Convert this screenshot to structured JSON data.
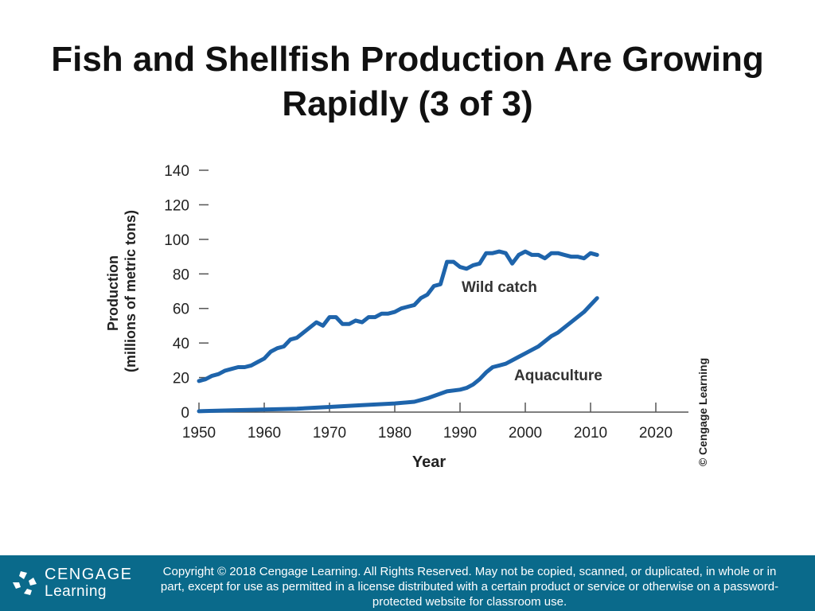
{
  "slide": {
    "title_line1": "Fish and Shellfish Production Are Growing",
    "title_line2": "Rapidly (3 of 3)"
  },
  "chart_data": {
    "type": "line",
    "title": "",
    "xlabel": "Year",
    "ylabel_line1": "Production",
    "ylabel_line2": "(millions of metric tons)",
    "xlim": [
      1950,
      2025
    ],
    "ylim": [
      0,
      140
    ],
    "x_ticks": [
      1950,
      1960,
      1970,
      1980,
      1990,
      2000,
      2010,
      2020
    ],
    "y_ticks": [
      0,
      20,
      40,
      60,
      80,
      100,
      120,
      140
    ],
    "grid": false,
    "line_color": "#1e64ab",
    "series": [
      {
        "name": "Wild catch",
        "x": [
          1950,
          1951,
          1952,
          1953,
          1954,
          1955,
          1956,
          1957,
          1958,
          1959,
          1960,
          1961,
          1962,
          1963,
          1964,
          1965,
          1966,
          1967,
          1968,
          1969,
          1970,
          1971,
          1972,
          1973,
          1974,
          1975,
          1976,
          1977,
          1978,
          1979,
          1980,
          1981,
          1982,
          1983,
          1984,
          1985,
          1986,
          1987,
          1988,
          1989,
          1990,
          1991,
          1992,
          1993,
          1994,
          1995,
          1996,
          1997,
          1998,
          1999,
          2000,
          2001,
          2002,
          2003,
          2004,
          2005,
          2006,
          2007,
          2008,
          2009,
          2010,
          2011
        ],
        "y": [
          18,
          19,
          21,
          22,
          24,
          25,
          26,
          26,
          27,
          29,
          31,
          35,
          37,
          38,
          42,
          43,
          46,
          49,
          52,
          50,
          55,
          55,
          51,
          51,
          53,
          52,
          55,
          55,
          57,
          57,
          58,
          60,
          61,
          62,
          66,
          68,
          73,
          74,
          87,
          87,
          84,
          83,
          85,
          86,
          92,
          92,
          93,
          92,
          86,
          91,
          93,
          91,
          91,
          89,
          92,
          92,
          91,
          90,
          90,
          89,
          92,
          91
        ]
      },
      {
        "name": "Aquaculture",
        "x": [
          1950,
          1955,
          1960,
          1965,
          1970,
          1975,
          1980,
          1983,
          1985,
          1988,
          1990,
          1991,
          1992,
          1993,
          1994,
          1995,
          1996,
          1997,
          1998,
          1999,
          2000,
          2001,
          2002,
          2003,
          2004,
          2005,
          2006,
          2007,
          2008,
          2009,
          2010,
          2011
        ],
        "y": [
          0.5,
          1,
          1.5,
          2,
          3,
          4,
          5,
          6,
          8,
          12,
          13,
          14,
          16,
          19,
          23,
          26,
          27,
          28,
          30,
          32,
          34,
          36,
          38,
          41,
          44,
          46,
          49,
          52,
          55,
          58,
          62,
          66
        ]
      }
    ]
  },
  "watermark": "© Cengage Learning",
  "footer": {
    "logo_line1": "CENGAGE",
    "logo_line2": "Learning",
    "copyright": "Copyright © 2018 Cengage Learning. All Rights Reserved. May not be copied, scanned, or duplicated, in whole or in part, except for use as permitted in a license distributed with a certain product or service or otherwise on a password-protected website for classroom use."
  }
}
